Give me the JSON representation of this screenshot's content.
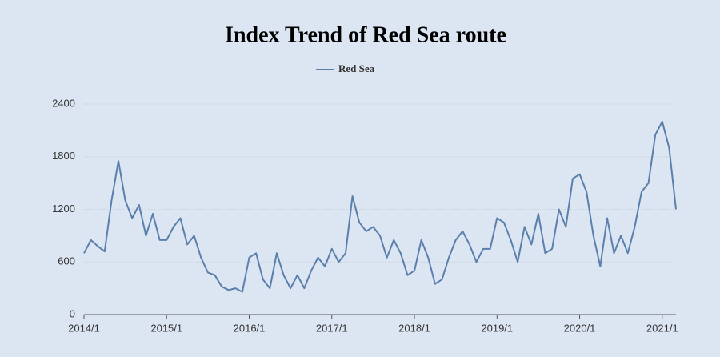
{
  "chart_data": {
    "type": "line",
    "title": "Index Trend of Red Sea route",
    "categories": [
      "2014/1",
      null,
      null,
      null,
      null,
      null,
      null,
      null,
      null,
      null,
      null,
      null,
      "2015/1",
      null,
      null,
      null,
      null,
      null,
      null,
      null,
      null,
      null,
      null,
      null,
      "2016/1",
      null,
      null,
      null,
      null,
      null,
      null,
      null,
      null,
      null,
      null,
      null,
      "2017/1",
      null,
      null,
      null,
      null,
      null,
      null,
      null,
      null,
      null,
      null,
      null,
      "2018/1",
      null,
      null,
      null,
      null,
      null,
      null,
      null,
      null,
      null,
      null,
      null,
      "2019/1",
      null,
      null,
      null,
      null,
      null,
      null,
      null,
      null,
      null,
      null,
      null,
      "2020/1",
      null,
      null,
      null,
      null,
      null,
      null,
      null,
      null,
      null,
      null,
      null,
      "2021/1",
      null,
      null
    ],
    "series": [
      {
        "name": "Red Sea",
        "color": "#5a7fac",
        "values": [
          700,
          850,
          780,
          720,
          1300,
          1750,
          1300,
          1100,
          1250,
          900,
          1150,
          850,
          850,
          1000,
          1100,
          800,
          900,
          650,
          480,
          450,
          320,
          280,
          300,
          260,
          650,
          700,
          400,
          300,
          700,
          450,
          300,
          450,
          300,
          500,
          650,
          550,
          750,
          600,
          700,
          1350,
          1050,
          950,
          1000,
          900,
          650,
          850,
          700,
          450,
          500,
          850,
          650,
          350,
          400,
          650,
          850,
          950,
          800,
          600,
          750,
          750,
          1100,
          1050,
          850,
          600,
          1000,
          800,
          1150,
          700,
          750,
          1200,
          1000,
          1550,
          1600,
          1400,
          900,
          550,
          1100,
          700,
          900,
          700,
          1000,
          1400,
          1500,
          2050,
          2200,
          1900,
          1200
        ]
      }
    ],
    "ylim": [
      0,
      2400
    ],
    "yticks": [
      0,
      600,
      1200,
      1800,
      2400
    ],
    "grid": true,
    "legend": "top"
  }
}
